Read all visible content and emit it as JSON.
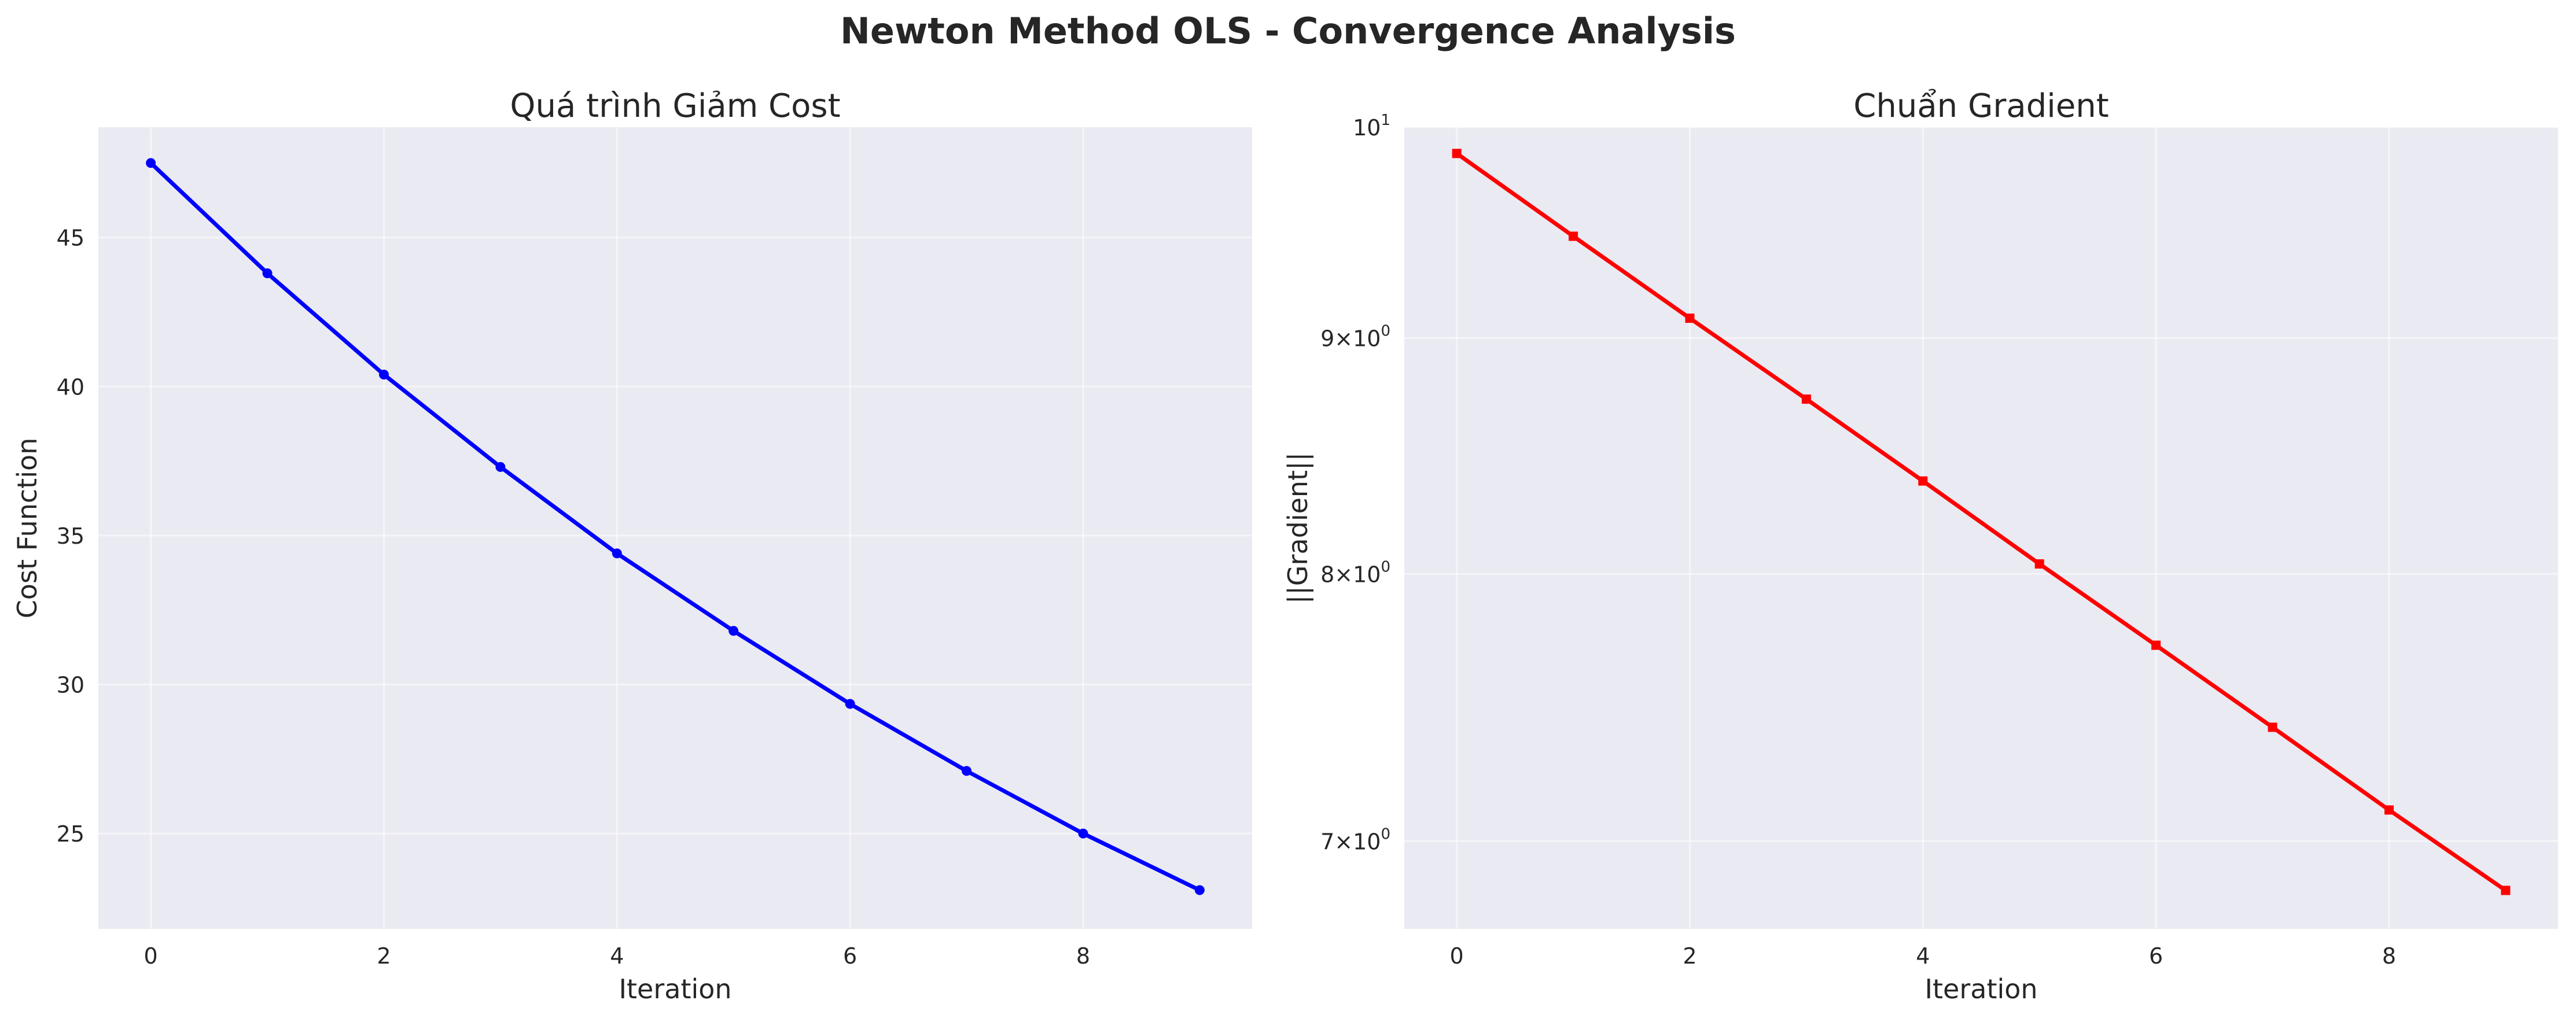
{
  "figure": {
    "title": "Newton Method OLS - Convergence Analysis"
  },
  "chart_data": [
    {
      "type": "line",
      "title": "Quá trình Giảm Cost",
      "xlabel": "Iteration",
      "ylabel": "Cost Function",
      "x": [
        0,
        1,
        2,
        3,
        4,
        5,
        6,
        7,
        8,
        9
      ],
      "series": [
        {
          "values": [
            47.5,
            43.8,
            40.4,
            37.3,
            34.4,
            31.8,
            29.35,
            27.1,
            25.0,
            23.1
          ],
          "color": "#0000ff",
          "marker": "circle"
        }
      ],
      "xlim": [
        -0.45,
        9.45
      ],
      "ylim": [
        21.8,
        48.7
      ],
      "xticks": [
        0,
        2,
        4,
        6,
        8
      ],
      "yticks": [
        25,
        30,
        35,
        40,
        45
      ],
      "ytick_labels": [
        "25",
        "30",
        "35",
        "40",
        "45"
      ],
      "yscale": "linear",
      "grid": true,
      "legend": "none"
    },
    {
      "type": "line",
      "title": "Chuẩn Gradient",
      "xlabel": "Iteration",
      "ylabel": "||Gradient||",
      "x": [
        0,
        1,
        2,
        3,
        4,
        5,
        6,
        7,
        8,
        9
      ],
      "series": [
        {
          "values": [
            9.87,
            9.47,
            9.09,
            8.73,
            8.38,
            8.04,
            7.72,
            7.41,
            7.11,
            6.83
          ],
          "color": "#ff0000",
          "marker": "square"
        }
      ],
      "xlim": [
        -0.45,
        9.45
      ],
      "ylim": [
        6.7,
        10.0
      ],
      "xticks": [
        0,
        2,
        4,
        6,
        8
      ],
      "yticks": [
        7,
        8,
        9,
        10
      ],
      "ytick_labels": [
        {
          "base": "7×10",
          "exp": "0"
        },
        {
          "base": "8×10",
          "exp": "0"
        },
        {
          "base": "9×10",
          "exp": "0"
        },
        {
          "base": "10",
          "exp": "1"
        }
      ],
      "yscale": "log",
      "grid": true,
      "legend": "none"
    }
  ]
}
